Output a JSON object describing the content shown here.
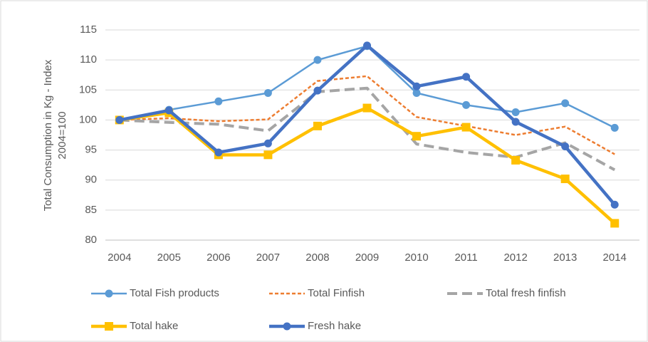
{
  "chart_data": {
    "type": "line",
    "y_label": [
      "Total Consumption in Kg - Index",
      "2004=100"
    ],
    "categories": [
      "2004",
      "2005",
      "2006",
      "2007",
      "2008",
      "2009",
      "2010",
      "2011",
      "2012",
      "2013",
      "2014"
    ],
    "series": [
      {
        "name": "Total Fish products",
        "color": "#5b9bd5",
        "line_style": "solid",
        "marker": "circle",
        "values": [
          100,
          101.7,
          103.1,
          104.5,
          110,
          112.3,
          104.5,
          102.5,
          101.3,
          102.8,
          98.7
        ]
      },
      {
        "name": "Total Finfish",
        "color": "#ed7d31",
        "line_style": "dashed",
        "marker": "none",
        "values": [
          100,
          100.3,
          99.8,
          100.1,
          106.5,
          107.3,
          100.5,
          99,
          97.5,
          98.9,
          94.3
        ]
      },
      {
        "name": "Total fresh finfish",
        "color": "#a5a5a5",
        "line_style": "long-dashed",
        "marker": "none",
        "values": [
          100,
          99.6,
          99.3,
          98.2,
          104.7,
          105.3,
          96,
          94.6,
          93.8,
          96.2,
          91.7
        ]
      },
      {
        "name": "Total hake",
        "color": "#ffc000",
        "line_style": "thick",
        "marker": "square",
        "values": [
          100,
          101.2,
          94.2,
          94.2,
          99,
          102,
          97.3,
          98.8,
          93.3,
          90.2,
          82.8
        ]
      },
      {
        "name": "Fresh hake",
        "color": "#4472c4",
        "line_style": "thick",
        "marker": "circle",
        "values": [
          100,
          101.6,
          94.6,
          96.1,
          104.9,
          112.4,
          105.6,
          107.2,
          99.7,
          95.6,
          85.9
        ]
      }
    ],
    "ylim": [
      80,
      115
    ],
    "yticks": [
      80,
      85,
      90,
      95,
      100,
      105,
      110,
      115
    ],
    "grid": true,
    "legend": "bottom"
  }
}
